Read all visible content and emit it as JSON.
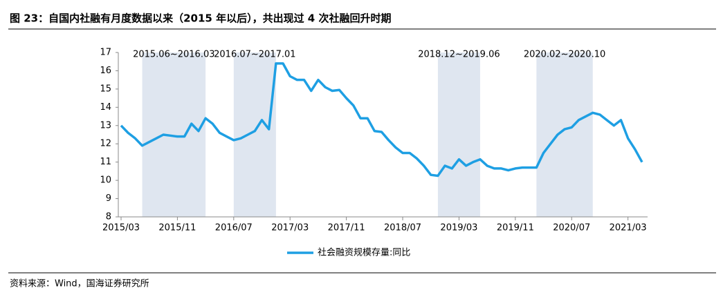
{
  "header": {
    "title": "图 23：自国内社融有月度数据以来（2015 年以后），共出现过 4 次社融回升时期"
  },
  "chart_data": {
    "type": "line",
    "categories": [
      "2015/03",
      null,
      null,
      null,
      null,
      null,
      null,
      null,
      "2015/11",
      null,
      null,
      null,
      null,
      null,
      null,
      null,
      "2016/07",
      null,
      null,
      null,
      null,
      null,
      null,
      null,
      "2017/03",
      null,
      null,
      null,
      null,
      null,
      null,
      null,
      "2017/11",
      null,
      null,
      null,
      null,
      null,
      null,
      null,
      "2018/07",
      null,
      null,
      null,
      null,
      null,
      null,
      null,
      "2019/03",
      null,
      null,
      null,
      null,
      null,
      null,
      null,
      "2019/11",
      null,
      null,
      null,
      null,
      null,
      null,
      null,
      "2020/07",
      null,
      null,
      null,
      null,
      null,
      null,
      null,
      "2021/03",
      null,
      null
    ],
    "series": [
      {
        "name": "社会融资规模存量:同比",
        "color": "#1e9fe3",
        "values": [
          13.0,
          12.6,
          12.3,
          11.9,
          12.1,
          12.3,
          12.5,
          12.45,
          12.4,
          12.4,
          13.1,
          12.7,
          13.4,
          13.1,
          12.6,
          12.4,
          12.2,
          12.3,
          12.5,
          12.7,
          13.3,
          12.8,
          16.4,
          16.4,
          15.7,
          15.5,
          15.5,
          14.9,
          15.5,
          15.1,
          14.9,
          14.95,
          14.5,
          14.1,
          13.4,
          13.4,
          12.7,
          12.65,
          12.2,
          11.8,
          11.5,
          11.5,
          11.2,
          10.8,
          10.3,
          10.25,
          10.8,
          10.65,
          11.15,
          10.8,
          11.0,
          11.15,
          10.8,
          10.65,
          10.65,
          10.55,
          10.65,
          10.7,
          10.7,
          10.7,
          11.5,
          12.0,
          12.5,
          12.8,
          12.9,
          13.3,
          13.5,
          13.7,
          13.6,
          13.3,
          13.0,
          13.3,
          12.3,
          11.7,
          11.0
        ]
      }
    ],
    "periods": [
      "2015.06~2016.03",
      "2016.07~2017.01",
      "2018.12~2019.06",
      "2020.02~2020.10"
    ],
    "period_color": "#dfe6f0",
    "ylim": [
      8,
      17
    ],
    "yticks": [
      8,
      9,
      10,
      11,
      12,
      13,
      14,
      15,
      16,
      17
    ],
    "grid": false,
    "legend": "bottom"
  },
  "footer": {
    "source": "资料来源：Wind，国海证券研究所"
  }
}
